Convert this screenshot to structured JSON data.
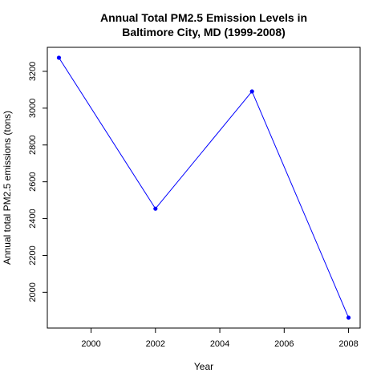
{
  "chart_data": {
    "type": "line",
    "title_lines": [
      "Annual Total PM2.5 Emission Levels in",
      "Baltimore City, MD (1999-2008)"
    ],
    "xlabel": "Year",
    "ylabel": "Annual total PM2.5 emissions (tons)",
    "x": [
      1999,
      2002,
      2005,
      2008
    ],
    "values": [
      3274,
      2454,
      3091,
      1862
    ],
    "xlim": [
      1999,
      2008
    ],
    "ylim": [
      1862,
      3274
    ],
    "x_ticks": [
      2000,
      2002,
      2004,
      2006,
      2008
    ],
    "y_ticks": [
      2000,
      2200,
      2400,
      2600,
      2800,
      3000,
      3200
    ],
    "line_color": "#0000ff",
    "point_color": "#0000ff",
    "grid": false,
    "legend": "none"
  }
}
